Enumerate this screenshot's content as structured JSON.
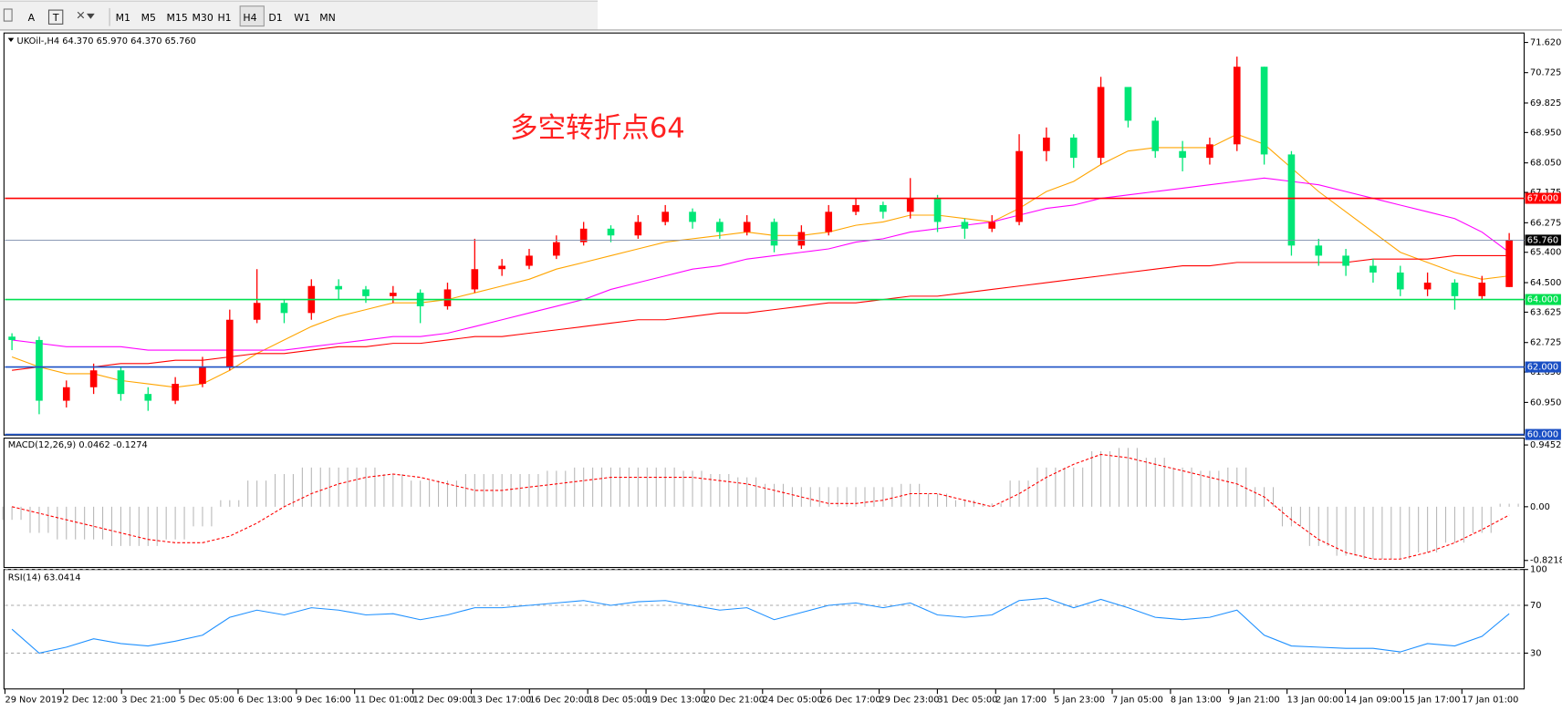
{
  "toolbar": {
    "tools": [
      "A",
      "T"
    ],
    "timeframes": [
      "M1",
      "M5",
      "M15",
      "M30",
      "H1",
      "H4",
      "D1",
      "W1",
      "MN"
    ],
    "active": "H4"
  },
  "chart_data": [
    {
      "type": "candlestick",
      "title": "UKOil-,H4 64.370 65.970 64.370 65.760",
      "annotation": "多空转折点64",
      "up_color": "#ff0000",
      "down_color": "#00e676",
      "open": [
        62.9,
        62.8,
        61.0,
        61.4,
        61.9,
        61.2,
        61.0,
        61.5,
        62.0,
        63.4,
        63.9,
        63.6,
        64.4,
        64.3,
        64.1,
        64.2,
        63.8,
        64.3,
        64.9,
        65.0,
        65.3,
        65.7,
        66.1,
        65.9,
        66.3,
        66.6,
        66.3,
        66.0,
        66.3,
        65.6,
        66.0,
        66.6,
        66.8,
        66.6,
        67.0,
        66.3,
        66.1,
        66.3,
        68.4,
        68.8,
        68.2,
        70.3,
        69.3,
        68.4,
        68.2,
        68.6,
        70.9,
        68.3,
        65.6,
        65.3,
        65.0,
        64.8,
        64.3,
        64.5,
        64.1,
        64.37
      ],
      "high": [
        63.0,
        62.9,
        61.6,
        62.1,
        62.0,
        61.4,
        61.7,
        62.3,
        63.7,
        64.9,
        64.0,
        64.6,
        64.6,
        64.4,
        64.4,
        64.3,
        64.5,
        65.8,
        65.2,
        65.5,
        65.9,
        66.3,
        66.2,
        66.5,
        66.8,
        66.7,
        66.4,
        66.5,
        66.4,
        66.2,
        66.8,
        67.0,
        66.9,
        67.6,
        67.1,
        66.4,
        66.5,
        68.9,
        69.1,
        68.9,
        70.6,
        70.2,
        69.4,
        68.7,
        68.8,
        71.2,
        70.9,
        68.4,
        65.8,
        65.5,
        65.2,
        65.0,
        64.8,
        64.6,
        64.7,
        65.97
      ],
      "low": [
        62.5,
        60.6,
        60.8,
        61.2,
        61.0,
        60.7,
        60.9,
        61.4,
        61.9,
        63.3,
        63.3,
        63.4,
        64.0,
        63.9,
        63.9,
        63.3,
        63.7,
        64.2,
        64.7,
        64.9,
        65.2,
        65.6,
        65.7,
        65.8,
        66.2,
        66.1,
        65.8,
        65.9,
        65.4,
        65.5,
        65.9,
        66.5,
        66.4,
        66.4,
        66.0,
        65.8,
        66.0,
        66.2,
        68.1,
        67.9,
        68.0,
        69.1,
        68.2,
        67.8,
        68.0,
        68.4,
        68.0,
        65.3,
        65.0,
        64.7,
        64.5,
        64.1,
        64.1,
        63.7,
        64.0,
        64.37
      ],
      "close": [
        62.8,
        61.0,
        61.4,
        61.9,
        61.2,
        61.0,
        61.5,
        62.0,
        63.4,
        63.9,
        63.6,
        64.4,
        64.3,
        64.1,
        64.2,
        63.8,
        64.3,
        64.9,
        65.0,
        65.3,
        65.7,
        66.1,
        65.9,
        66.3,
        66.6,
        66.3,
        66.0,
        66.3,
        65.6,
        66.0,
        66.6,
        66.8,
        66.6,
        67.0,
        66.3,
        66.1,
        66.3,
        68.4,
        68.8,
        68.2,
        70.3,
        69.3,
        68.4,
        68.2,
        68.6,
        70.9,
        68.3,
        65.6,
        65.3,
        65.0,
        64.8,
        64.3,
        64.5,
        64.1,
        64.5,
        65.76
      ],
      "series": [
        {
          "color": "#ffa500",
          "values": [
            62.3,
            62.0,
            61.8,
            61.8,
            61.6,
            61.5,
            61.4,
            61.5,
            61.9,
            62.4,
            62.8,
            63.2,
            63.5,
            63.7,
            63.9,
            63.9,
            64.0,
            64.2,
            64.4,
            64.6,
            64.9,
            65.1,
            65.3,
            65.5,
            65.7,
            65.8,
            65.9,
            66.0,
            65.9,
            65.9,
            66.0,
            66.2,
            66.3,
            66.5,
            66.5,
            66.4,
            66.3,
            66.7,
            67.2,
            67.5,
            68.0,
            68.4,
            68.5,
            68.5,
            68.5,
            68.9,
            68.6,
            67.9,
            67.2,
            66.6,
            66.0,
            65.4,
            65.1,
            64.8,
            64.6,
            64.7
          ]
        },
        {
          "color": "#ff00ff",
          "values": [
            62.8,
            62.7,
            62.6,
            62.6,
            62.6,
            62.5,
            62.5,
            62.5,
            62.5,
            62.5,
            62.5,
            62.6,
            62.7,
            62.8,
            62.9,
            62.9,
            63.0,
            63.2,
            63.4,
            63.6,
            63.8,
            64.0,
            64.3,
            64.5,
            64.7,
            64.9,
            65.0,
            65.2,
            65.3,
            65.4,
            65.5,
            65.7,
            65.8,
            66.0,
            66.1,
            66.2,
            66.3,
            66.5,
            66.7,
            66.8,
            67.0,
            67.1,
            67.2,
            67.3,
            67.4,
            67.5,
            67.6,
            67.5,
            67.4,
            67.2,
            67.0,
            66.8,
            66.6,
            66.4,
            66.0,
            65.4
          ]
        },
        {
          "color": "#ff0000",
          "values": [
            61.9,
            62.0,
            62.0,
            62.0,
            62.1,
            62.1,
            62.2,
            62.2,
            62.3,
            62.4,
            62.4,
            62.5,
            62.6,
            62.6,
            62.7,
            62.7,
            62.8,
            62.9,
            62.9,
            63.0,
            63.1,
            63.2,
            63.3,
            63.4,
            63.4,
            63.5,
            63.6,
            63.6,
            63.7,
            63.8,
            63.9,
            63.9,
            64.0,
            64.1,
            64.1,
            64.2,
            64.3,
            64.4,
            64.5,
            64.6,
            64.7,
            64.8,
            64.9,
            65.0,
            65.0,
            65.1,
            65.1,
            65.1,
            65.1,
            65.1,
            65.2,
            65.2,
            65.2,
            65.3,
            65.3,
            65.3
          ]
        }
      ],
      "ylim": [
        59.98,
        71.9
      ],
      "yticks": [
        {
          "value": 71.62,
          "label": "71.620"
        },
        {
          "value": 70.725,
          "label": "70.725"
        },
        {
          "value": 69.825,
          "label": "69.825"
        },
        {
          "value": 68.95,
          "label": "68.950"
        },
        {
          "value": 68.05,
          "label": "68.050"
        },
        {
          "value": 67.175,
          "label": "67.175"
        },
        {
          "value": 66.275,
          "label": "66.275"
        },
        {
          "value": 65.4,
          "label": "65.400"
        },
        {
          "value": 64.5,
          "label": "64.500"
        },
        {
          "value": 63.625,
          "label": "63.625"
        },
        {
          "value": 62.725,
          "label": "62.725"
        },
        {
          "value": 61.85,
          "label": "61.850"
        },
        {
          "value": 60.95,
          "label": "60.950"
        }
      ],
      "levels": [
        {
          "value": 67,
          "label": "67.000",
          "color": "#ff0000"
        },
        {
          "value": 65.76,
          "label": "65.760",
          "color": "#7b8bab"
        },
        {
          "value": 64,
          "label": "64.000",
          "color": "#00e050"
        },
        {
          "value": 62,
          "label": "62.000",
          "color": "#1a4fc4"
        },
        {
          "value": 60,
          "label": "60.000",
          "color": "#1a4fc4"
        }
      ]
    },
    {
      "type": "macd",
      "title": "MACD(12,26,9) 0.0462 -0.1274",
      "color": "#b8b8b8",
      "values": [
        -0.2,
        -0.4,
        -0.5,
        -0.5,
        -0.6,
        -0.6,
        -0.5,
        -0.3,
        0.1,
        0.4,
        0.5,
        0.6,
        0.6,
        0.6,
        0.5,
        0.4,
        0.4,
        0.5,
        0.5,
        0.5,
        0.55,
        0.6,
        0.6,
        0.6,
        0.6,
        0.55,
        0.5,
        0.45,
        0.35,
        0.3,
        0.3,
        0.3,
        0.3,
        0.35,
        0.2,
        0.1,
        0.05,
        0.4,
        0.6,
        0.6,
        0.85,
        0.9,
        0.75,
        0.6,
        0.55,
        0.6,
        0.3,
        -0.3,
        -0.6,
        -0.75,
        -0.8,
        -0.8,
        -0.7,
        -0.55,
        -0.4,
        0.0462
      ],
      "signal": {
        "color": "#ff0000",
        "values": [
          0.0,
          -0.1,
          -0.2,
          -0.3,
          -0.4,
          -0.5,
          -0.55,
          -0.55,
          -0.45,
          -0.25,
          0.0,
          0.2,
          0.35,
          0.45,
          0.5,
          0.45,
          0.35,
          0.25,
          0.25,
          0.3,
          0.35,
          0.4,
          0.45,
          0.45,
          0.45,
          0.45,
          0.4,
          0.35,
          0.25,
          0.15,
          0.05,
          0.05,
          0.1,
          0.2,
          0.2,
          0.1,
          0.0,
          0.2,
          0.45,
          0.65,
          0.8,
          0.75,
          0.65,
          0.55,
          0.45,
          0.35,
          0.15,
          -0.2,
          -0.5,
          -0.7,
          -0.8,
          -0.8,
          -0.7,
          -0.55,
          -0.35,
          -0.1274
        ]
      },
      "ylim": [
        -0.93,
        1.05
      ],
      "yticks": [
        0.9452,
        {
          "value": 0,
          "label": "0.00"
        },
        -0.8218
      ]
    },
    {
      "type": "line",
      "title": "RSI(14) 63.0414",
      "color": "#1e90ff",
      "values": [
        50,
        30,
        35,
        42,
        38,
        36,
        40,
        45,
        60,
        66,
        62,
        68,
        66,
        62,
        63,
        58,
        62,
        68,
        68,
        70,
        72,
        74,
        70,
        73,
        74,
        70,
        66,
        68,
        58,
        64,
        70,
        72,
        68,
        72,
        62,
        60,
        62,
        74,
        76,
        68,
        75,
        68,
        60,
        58,
        60,
        66,
        45,
        36,
        35,
        34,
        34,
        31,
        38,
        36,
        44,
        63.0414
      ],
      "ylim": [
        0,
        100
      ],
      "yticks": [
        100,
        70,
        30
      ],
      "grid": true,
      "xlabels": [
        "29 Nov 2019",
        "2 Dec 12:00",
        "3 Dec 21:00",
        "5 Dec 05:00",
        "6 Dec 13:00",
        "9 Dec 16:00",
        "11 Dec 01:00",
        "12 Dec 09:00",
        "13 Dec 17:00",
        "16 Dec 20:00",
        "18 Dec 05:00",
        "19 Dec 13:00",
        "20 Dec 21:00",
        "24 Dec 05:00",
        "26 Dec 17:00",
        "29 Dec 23:00",
        "31 Dec 05:00",
        "2 Jan 17:00",
        "5 Jan 23:00",
        "7 Jan 05:00",
        "8 Jan 13:00",
        "9 Jan 21:00",
        "13 Jan 00:00",
        "14 Jan 09:00",
        "15 Jan 17:00",
        "17 Jan 01:00"
      ]
    }
  ]
}
